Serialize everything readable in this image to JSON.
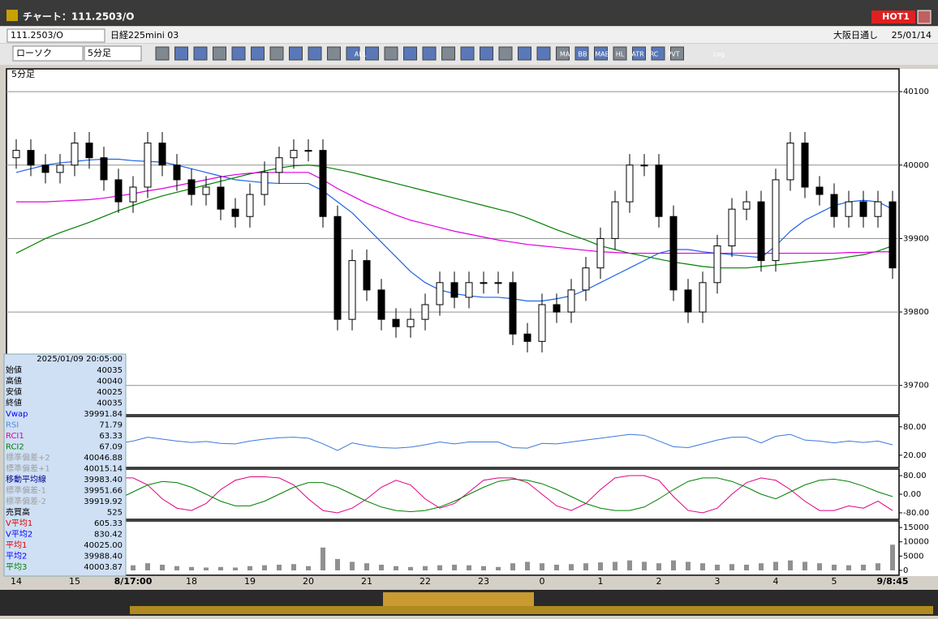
{
  "window": {
    "title": "チャート：111.2503/O",
    "badge": "HOT1"
  },
  "symbol_bar": {
    "code": "111.2503/O",
    "name": "日経225mini 03",
    "session": "大阪日通し",
    "date": "25/01/14"
  },
  "toolbar": {
    "chart_kind": "ローソク",
    "interval": "5分足",
    "buttons": [
      "ALL",
      "MA",
      "BB",
      "MAE",
      "HL",
      "ATR",
      "RC",
      "PVT",
      "Log"
    ]
  },
  "info_panel": {
    "timestamp": "2025/01/09 20:05:00",
    "rows": [
      {
        "label": "始値",
        "value": "40035",
        "color": "#000000"
      },
      {
        "label": "高値",
        "value": "40040",
        "color": "#000000"
      },
      {
        "label": "安値",
        "value": "40025",
        "color": "#000000"
      },
      {
        "label": "終値",
        "value": "40035",
        "color": "#000000"
      },
      {
        "label": "Vwap",
        "value": "39991.84",
        "color": "#0000ff"
      },
      {
        "label": "RSI",
        "value": "71.79",
        "color": "#5a8ad8"
      },
      {
        "label": "RCI1",
        "value": "63.33",
        "color": "#e000a0"
      },
      {
        "label": "RCI2",
        "value": "67.09",
        "color": "#008000"
      },
      {
        "label": "標準偏差+2",
        "value": "40046.88",
        "color": "#a0a0a0"
      },
      {
        "label": "標準偏差+1",
        "value": "40015.14",
        "color": "#a0a0a0"
      },
      {
        "label": "移動平均線",
        "value": "39983.40",
        "color": "#00008b"
      },
      {
        "label": "標準偏差-1",
        "value": "39951.66",
        "color": "#a0a0a0"
      },
      {
        "label": "標準偏差-2",
        "value": "39919.92",
        "color": "#a0a0a0"
      },
      {
        "label": "売買高",
        "value": "525",
        "color": "#000000"
      },
      {
        "label": "V平均1",
        "value": "605.33",
        "color": "#e00000"
      },
      {
        "label": "V平均2",
        "value": "830.42",
        "color": "#0000ff"
      },
      {
        "label": "平均1",
        "value": "40025.00",
        "color": "#e00000"
      },
      {
        "label": "平均2",
        "value": "39988.40",
        "color": "#0000ff"
      },
      {
        "label": "平均3",
        "value": "40003.87",
        "color": "#008000"
      }
    ]
  },
  "chart_data": [
    {
      "type": "candlestick",
      "label": "5分足",
      "categories": [
        "14",
        null,
        null,
        null,
        "15",
        null,
        null,
        null,
        "8/17:00",
        null,
        null,
        null,
        "18",
        null,
        null,
        null,
        "19",
        null,
        null,
        null,
        "20",
        null,
        null,
        null,
        "21",
        null,
        null,
        null,
        "22",
        null,
        null,
        null,
        "23",
        null,
        null,
        null,
        "0",
        null,
        null,
        null,
        "1",
        null,
        null,
        null,
        "2",
        null,
        null,
        null,
        "3",
        null,
        null,
        null,
        "4",
        null,
        null,
        null,
        "5",
        null,
        null,
        null,
        "9/8:45"
      ],
      "open": [
        40010,
        40020,
        40000,
        39990,
        40000,
        40030,
        40010,
        39980,
        39950,
        39970,
        40030,
        40000,
        39980,
        39960,
        39970,
        39940,
        39930,
        39960,
        39990,
        40010,
        40020,
        40020,
        39930,
        39790,
        39870,
        39830,
        39790,
        39780,
        39790,
        39810,
        39840,
        39820,
        39840,
        39840,
        39840,
        39770,
        39760,
        39810,
        39800,
        39830,
        39860,
        39900,
        39950,
        40000,
        40000,
        39930,
        39830,
        39800,
        39840,
        39890,
        39940,
        39950,
        39870,
        39980,
        40030,
        39970,
        39960,
        39930,
        39950,
        39930,
        39950
      ],
      "high": [
        40035,
        40035,
        40015,
        40015,
        40045,
        40045,
        40025,
        39995,
        39985,
        40045,
        40045,
        40015,
        39995,
        39985,
        39985,
        39955,
        39975,
        40005,
        40025,
        40035,
        40035,
        40035,
        39945,
        39885,
        39885,
        39845,
        39805,
        39805,
        39825,
        39855,
        39855,
        39855,
        39855,
        39855,
        39855,
        39785,
        39825,
        39825,
        39845,
        39875,
        39915,
        39965,
        40015,
        40015,
        40015,
        39945,
        39845,
        39855,
        39905,
        39955,
        39965,
        39965,
        39995,
        40045,
        40045,
        39985,
        39975,
        39965,
        39965,
        39965,
        39965
      ],
      "low": [
        39995,
        39985,
        39975,
        39975,
        39985,
        39995,
        39965,
        39935,
        39935,
        39955,
        39985,
        39965,
        39945,
        39945,
        39925,
        39915,
        39915,
        39945,
        39975,
        39995,
        40005,
        39915,
        39775,
        39775,
        39815,
        39775,
        39765,
        39765,
        39775,
        39795,
        39805,
        39805,
        39825,
        39825,
        39755,
        39745,
        39745,
        39785,
        39785,
        39815,
        39845,
        39885,
        39935,
        39985,
        39915,
        39815,
        39785,
        39785,
        39825,
        39875,
        39925,
        39855,
        39855,
        39965,
        39955,
        39945,
        39915,
        39915,
        39915,
        39915,
        39845
      ],
      "close": [
        40020,
        40000,
        39990,
        40000,
        40030,
        40010,
        39980,
        39950,
        39970,
        40030,
        40000,
        39980,
        39960,
        39970,
        39940,
        39930,
        39960,
        39990,
        40010,
        40020,
        40020,
        39930,
        39790,
        39870,
        39830,
        39790,
        39780,
        39790,
        39810,
        39840,
        39820,
        39840,
        39840,
        39840,
        39770,
        39760,
        39810,
        39800,
        39830,
        39860,
        39900,
        39950,
        40000,
        40000,
        39930,
        39830,
        39800,
        39840,
        39890,
        39940,
        39950,
        39870,
        39980,
        40030,
        39970,
        39960,
        39930,
        39950,
        39930,
        39950,
        39860
      ],
      "overlays": [
        {
          "color": "#1e64e6",
          "values": [
            39990,
            39995,
            40000,
            40003,
            40005,
            40007,
            40008,
            40008,
            40006,
            40005,
            40004,
            40000,
            39995,
            39990,
            39985,
            39980,
            39978,
            39976,
            39975,
            39975,
            39975,
            39965,
            39950,
            39935,
            39915,
            39895,
            39875,
            39855,
            39840,
            39830,
            39825,
            39822,
            39820,
            39820,
            39818,
            39815,
            39815,
            39818,
            39822,
            39830,
            39840,
            39850,
            39860,
            39870,
            39880,
            39885,
            39885,
            39882,
            39880,
            39878,
            39876,
            39874,
            39890,
            39910,
            39925,
            39935,
            39945,
            39950,
            39952,
            39950,
            39940
          ]
        },
        {
          "color": "#008000",
          "values": [
            39880,
            39890,
            39900,
            39908,
            39915,
            39922,
            39930,
            39938,
            39945,
            39952,
            39958,
            39963,
            39968,
            39973,
            39978,
            39983,
            39988,
            39992,
            39996,
            39999,
            40000,
            39998,
            39994,
            39990,
            39985,
            39980,
            39975,
            39970,
            39965,
            39960,
            39955,
            39950,
            39945,
            39940,
            39935,
            39928,
            39920,
            39912,
            39905,
            39898,
            39890,
            39885,
            39880,
            39876,
            39872,
            39868,
            39865,
            39862,
            39860,
            39860,
            39860,
            39862,
            39864,
            39866,
            39868,
            39870,
            39872,
            39875,
            39878,
            39883,
            39890
          ]
        },
        {
          "color": "#e000e0",
          "values": [
            39950,
            39950,
            39950,
            39951,
            39952,
            39953,
            39955,
            39958,
            39961,
            39965,
            39968,
            39972,
            39976,
            39980,
            39984,
            39987,
            39989,
            39990,
            39990,
            39990,
            39990,
            39980,
            39968,
            39958,
            39948,
            39940,
            39932,
            39925,
            39920,
            39915,
            39910,
            39906,
            39902,
            39898,
            39895,
            39892,
            39890,
            39888,
            39886,
            39884,
            39882,
            39881,
            39880,
            39880,
            39880,
            39880,
            39880,
            39880,
            39880,
            39880,
            39880,
            39880,
            39880,
            39880,
            39880,
            39880,
            39880,
            39881,
            39881,
            39882,
            39882
          ]
        }
      ],
      "ylim": [
        39660,
        40131
      ],
      "yticks": [
        39700,
        39800,
        39900,
        40000,
        40100
      ],
      "grid": true
    },
    {
      "type": "line",
      "series": [
        {
          "color": "#3c78dc",
          "values": [
            55,
            52,
            50,
            53,
            58,
            54,
            48,
            45,
            50,
            58,
            54,
            50,
            47,
            49,
            45,
            44,
            50,
            54,
            57,
            58,
            56,
            44,
            30,
            46,
            40,
            36,
            35,
            37,
            42,
            48,
            44,
            48,
            48,
            48,
            36,
            35,
            45,
            44,
            48,
            52,
            56,
            60,
            64,
            62,
            50,
            38,
            36,
            44,
            52,
            58,
            58,
            46,
            60,
            64,
            52,
            50,
            46,
            50,
            47,
            50,
            42
          ]
        }
      ],
      "ylim": [
        -6,
        102
      ],
      "yticks": [
        {
          "value": 20,
          "label": "20.00"
        },
        {
          "value": 80,
          "label": "80.00"
        }
      ]
    },
    {
      "type": "line",
      "series": [
        {
          "color": "#e00080",
          "values": [
            60,
            20,
            -40,
            -70,
            -60,
            -20,
            40,
            70,
            70,
            40,
            -20,
            -60,
            -70,
            -40,
            20,
            60,
            75,
            75,
            70,
            40,
            -20,
            -70,
            -80,
            -60,
            -20,
            30,
            60,
            40,
            -20,
            -60,
            -40,
            10,
            60,
            70,
            70,
            50,
            0,
            -50,
            -70,
            -40,
            20,
            70,
            80,
            80,
            60,
            -10,
            -70,
            -80,
            -60,
            0,
            50,
            70,
            60,
            20,
            -30,
            -70,
            -70,
            -50,
            -60,
            -30,
            -70
          ]
        },
        {
          "color": "#008000",
          "values": [
            40,
            50,
            40,
            10,
            -20,
            -40,
            -40,
            -20,
            10,
            40,
            55,
            50,
            30,
            0,
            -30,
            -50,
            -50,
            -30,
            0,
            30,
            50,
            50,
            30,
            0,
            -30,
            -55,
            -70,
            -75,
            -70,
            -55,
            -30,
            0,
            30,
            55,
            65,
            60,
            45,
            20,
            -10,
            -40,
            -60,
            -70,
            -70,
            -55,
            -20,
            20,
            55,
            70,
            70,
            55,
            30,
            0,
            -20,
            10,
            40,
            60,
            65,
            55,
            35,
            10,
            -10
          ]
        }
      ],
      "ylim": [
        -108,
        108
      ],
      "yticks": [
        {
          "value": -80,
          "label": "-80.00"
        },
        {
          "value": 0,
          "label": "0.00"
        },
        {
          "value": 80,
          "label": "80.00"
        }
      ]
    },
    {
      "type": "bar",
      "color": "#909090",
      "values": [
        3500,
        2500,
        2000,
        1800,
        2200,
        2000,
        1500,
        1200,
        1800,
        2500,
        2000,
        1500,
        1200,
        1000,
        1200,
        1000,
        1500,
        1800,
        2000,
        2200,
        1500,
        8000,
        4000,
        3000,
        2500,
        2000,
        1500,
        1200,
        1500,
        1800,
        2000,
        1800,
        1500,
        1200,
        2500,
        3000,
        2500,
        2000,
        2200,
        2500,
        2800,
        3000,
        3500,
        3000,
        2500,
        3500,
        3000,
        2500,
        2000,
        2200,
        2000,
        2500,
        3000,
        3500,
        3000,
        2500,
        2000,
        1800,
        2000,
        2500,
        9000
      ],
      "ylim": [
        -1700,
        17300
      ],
      "yticks": [
        0,
        5000,
        10000,
        15000
      ]
    }
  ]
}
